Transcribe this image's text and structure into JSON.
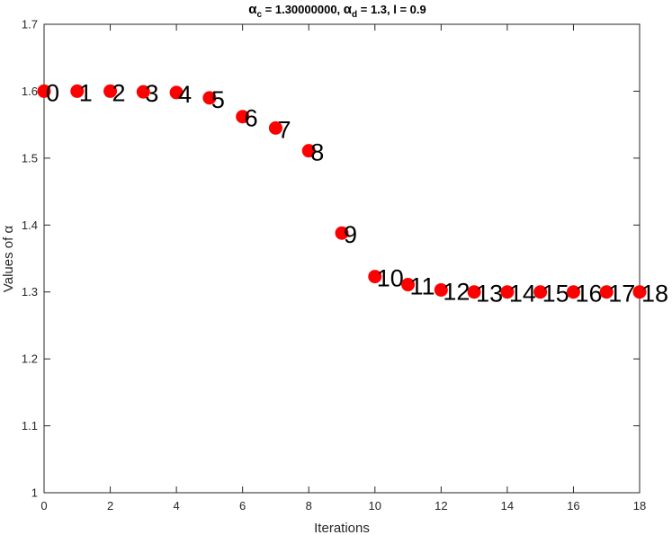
{
  "chart_data": {
    "type": "scatter",
    "title": {
      "alpha_c_symbol": "α",
      "alpha_c_sub": "c",
      "alpha_c_value": " = 1.30000000,  ",
      "alpha_d_symbol": "α",
      "alpha_d_sub": "d",
      "alpha_d_value": " = 1.3,  ",
      "l_text": "l = 0.9"
    },
    "xlabel": "Iterations",
    "ylabel": "Values of α",
    "xlim": [
      0,
      18
    ],
    "ylim": [
      1,
      1.7
    ],
    "x_ticks": [
      0,
      2,
      4,
      6,
      8,
      10,
      12,
      14,
      16,
      18
    ],
    "y_ticks": [
      1,
      1.1,
      1.2,
      1.3,
      1.4,
      1.5,
      1.6,
      1.7
    ],
    "x_tick_labels": [
      "0",
      "2",
      "4",
      "6",
      "8",
      "10",
      "12",
      "14",
      "16",
      "18"
    ],
    "y_tick_labels": [
      "1",
      "1.1",
      "1.2",
      "1.3",
      "1.4",
      "1.5",
      "1.6",
      "1.7"
    ],
    "grid": false,
    "marker_color": "#ff0000",
    "points": [
      {
        "x": 0,
        "y": 1.6,
        "label": "0"
      },
      {
        "x": 1,
        "y": 1.6,
        "label": "1"
      },
      {
        "x": 2,
        "y": 1.6,
        "label": "2"
      },
      {
        "x": 3,
        "y": 1.599,
        "label": "3"
      },
      {
        "x": 4,
        "y": 1.598,
        "label": "4"
      },
      {
        "x": 5,
        "y": 1.59,
        "label": "5"
      },
      {
        "x": 6,
        "y": 1.562,
        "label": "6"
      },
      {
        "x": 7,
        "y": 1.545,
        "label": "7"
      },
      {
        "x": 8,
        "y": 1.511,
        "label": "8"
      },
      {
        "x": 9,
        "y": 1.388,
        "label": "9"
      },
      {
        "x": 10,
        "y": 1.323,
        "label": "10"
      },
      {
        "x": 11,
        "y": 1.311,
        "label": "11"
      },
      {
        "x": 12,
        "y": 1.303,
        "label": "12"
      },
      {
        "x": 13,
        "y": 1.3,
        "label": "13"
      },
      {
        "x": 14,
        "y": 1.3,
        "label": "14"
      },
      {
        "x": 15,
        "y": 1.3,
        "label": "15"
      },
      {
        "x": 16,
        "y": 1.3,
        "label": "16"
      },
      {
        "x": 17,
        "y": 1.3,
        "label": "17"
      },
      {
        "x": 18,
        "y": 1.3,
        "label": "18"
      }
    ]
  }
}
